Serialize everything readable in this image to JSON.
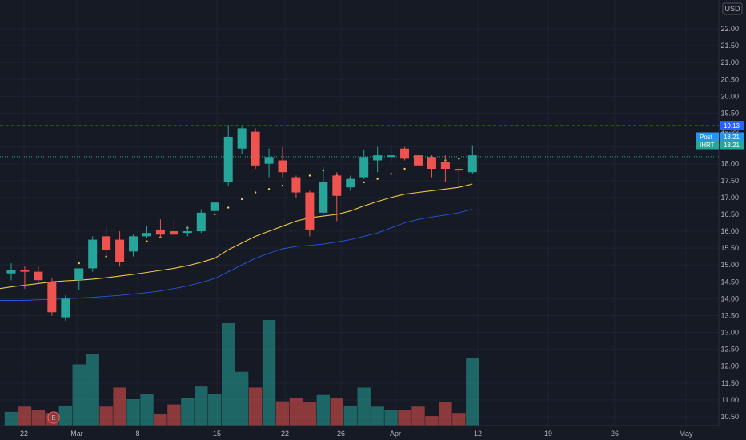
{
  "chart_data": {
    "type": "candlestick",
    "symbol": "IHRT",
    "currency": "USD",
    "currency_label": "USD",
    "x_ticks": [
      "22",
      "Mar",
      "8",
      "15",
      "22",
      "26",
      "Apr",
      "12",
      "19",
      "26",
      "May"
    ],
    "y_ticks": [
      "10.50",
      "11.00",
      "11.50",
      "12.00",
      "12.50",
      "13.00",
      "13.50",
      "14.00",
      "14.50",
      "15.00",
      "15.50",
      "16.00",
      "16.50",
      "17.00",
      "17.50",
      "18.00",
      "18.50",
      "19.00",
      "19.50",
      "20.00",
      "20.50",
      "21.00",
      "21.50",
      "22.00"
    ],
    "ylim": [
      10.3,
      22.2
    ],
    "horizontal_lines": [
      19.13,
      18.21
    ],
    "price_tags": [
      {
        "label": "",
        "value": "19.13",
        "color": "#2962ff"
      },
      {
        "label": "Post",
        "value": "18.21",
        "color": "#2196f3"
      },
      {
        "label": "IHRT",
        "value": "18.21",
        "color": "#26a69a"
      }
    ],
    "earnings_marker": "E",
    "colors": {
      "up": "#26a69a",
      "down": "#ef5350",
      "ma_yellow": "#f0c93d",
      "ma_blue": "#2962ff",
      "dots": "#f5d547"
    },
    "candles": [
      {
        "o": 14.75,
        "h": 15.05,
        "l": 14.55,
        "c": 14.85
      },
      {
        "o": 14.85,
        "h": 14.95,
        "l": 14.3,
        "c": 14.8
      },
      {
        "o": 14.8,
        "h": 14.95,
        "l": 14.45,
        "c": 14.55
      },
      {
        "o": 14.5,
        "h": 14.6,
        "l": 13.5,
        "c": 13.6
      },
      {
        "o": 13.45,
        "h": 14.1,
        "l": 13.35,
        "c": 14.0
      },
      {
        "o": 14.55,
        "h": 14.9,
        "l": 14.25,
        "c": 14.9
      },
      {
        "o": 14.9,
        "h": 15.85,
        "l": 14.8,
        "c": 15.75
      },
      {
        "o": 15.85,
        "h": 16.15,
        "l": 15.25,
        "c": 15.45
      },
      {
        "o": 15.75,
        "h": 16.0,
        "l": 14.95,
        "c": 15.1
      },
      {
        "o": 15.4,
        "h": 15.9,
        "l": 15.25,
        "c": 15.85
      },
      {
        "o": 15.85,
        "h": 16.15,
        "l": 15.8,
        "c": 15.95
      },
      {
        "o": 16.05,
        "h": 16.35,
        "l": 15.8,
        "c": 15.9
      },
      {
        "o": 16.0,
        "h": 16.35,
        "l": 15.85,
        "c": 15.9
      },
      {
        "o": 15.95,
        "h": 16.15,
        "l": 15.85,
        "c": 16.0
      },
      {
        "o": 16.0,
        "h": 16.65,
        "l": 15.95,
        "c": 16.55
      },
      {
        "o": 16.6,
        "h": 16.85,
        "l": 16.55,
        "c": 16.85
      },
      {
        "o": 17.45,
        "h": 19.15,
        "l": 17.35,
        "c": 18.8
      },
      {
        "o": 18.45,
        "h": 19.1,
        "l": 18.3,
        "c": 19.05
      },
      {
        "o": 18.95,
        "h": 19.05,
        "l": 17.85,
        "c": 17.95
      },
      {
        "o": 18.0,
        "h": 18.45,
        "l": 17.6,
        "c": 18.2
      },
      {
        "o": 18.1,
        "h": 18.5,
        "l": 17.6,
        "c": 17.75
      },
      {
        "o": 17.6,
        "h": 17.65,
        "l": 17.0,
        "c": 17.15
      },
      {
        "o": 17.15,
        "h": 17.2,
        "l": 15.85,
        "c": 16.05
      },
      {
        "o": 16.55,
        "h": 17.9,
        "l": 16.5,
        "c": 17.45
      },
      {
        "o": 17.65,
        "h": 17.75,
        "l": 16.3,
        "c": 17.05
      },
      {
        "o": 17.3,
        "h": 17.65,
        "l": 17.2,
        "c": 17.55
      },
      {
        "o": 17.6,
        "h": 18.4,
        "l": 17.55,
        "c": 18.2
      },
      {
        "o": 18.1,
        "h": 18.5,
        "l": 17.75,
        "c": 18.25
      },
      {
        "o": 18.2,
        "h": 18.5,
        "l": 18.05,
        "c": 18.25
      },
      {
        "o": 18.45,
        "h": 18.5,
        "l": 18.1,
        "c": 18.15
      },
      {
        "o": 18.25,
        "h": 18.25,
        "l": 17.95,
        "c": 17.95
      },
      {
        "o": 18.2,
        "h": 18.25,
        "l": 17.6,
        "c": 17.85
      },
      {
        "o": 18.05,
        "h": 18.25,
        "l": 17.45,
        "c": 17.85
      },
      {
        "o": 17.85,
        "h": 17.9,
        "l": 17.35,
        "c": 17.8
      },
      {
        "o": 17.75,
        "h": 18.55,
        "l": 17.7,
        "c": 18.25
      }
    ],
    "volume": [
      0.13,
      0.18,
      0.15,
      0.12,
      0.19,
      0.58,
      0.68,
      0.18,
      0.36,
      0.25,
      0.3,
      0.11,
      0.2,
      0.26,
      0.37,
      0.3,
      0.97,
      0.51,
      0.36,
      1.0,
      0.23,
      0.26,
      0.22,
      0.29,
      0.26,
      0.19,
      0.36,
      0.18,
      0.15,
      0.15,
      0.18,
      0.09,
      0.22,
      0.12,
      0.64
    ],
    "ma_yellow": [
      14.35,
      14.4,
      14.45,
      14.5,
      14.53,
      14.55,
      14.58,
      14.62,
      14.67,
      14.72,
      14.78,
      14.84,
      14.9,
      14.98,
      15.08,
      15.2,
      15.45,
      15.65,
      15.85,
      16.0,
      16.15,
      16.3,
      16.4,
      16.45,
      16.5,
      16.6,
      16.75,
      16.88,
      17.0,
      17.1,
      17.15,
      17.2,
      17.25,
      17.3,
      17.4
    ],
    "ma_blue": [
      13.95,
      13.95,
      13.97,
      13.98,
      14.0,
      14.02,
      14.04,
      14.07,
      14.1,
      14.14,
      14.18,
      14.23,
      14.3,
      14.38,
      14.48,
      14.6,
      14.8,
      15.0,
      15.2,
      15.35,
      15.48,
      15.55,
      15.58,
      15.62,
      15.68,
      15.75,
      15.85,
      15.95,
      16.1,
      16.25,
      16.35,
      16.42,
      16.48,
      16.55,
      16.65
    ],
    "dots_from_index": 5,
    "dots": [
      15.05,
      15.15,
      15.25,
      15.4,
      15.6,
      15.7,
      15.82,
      15.97,
      16.1,
      16.3,
      16.5,
      16.7,
      16.95,
      17.15,
      17.25,
      17.35,
      17.45,
      17.65,
      17.8,
      17.65,
      17.55,
      17.45,
      17.55,
      17.7,
      17.85,
      18.0,
      18.05,
      18.1,
      18.15,
      18.15
    ]
  }
}
